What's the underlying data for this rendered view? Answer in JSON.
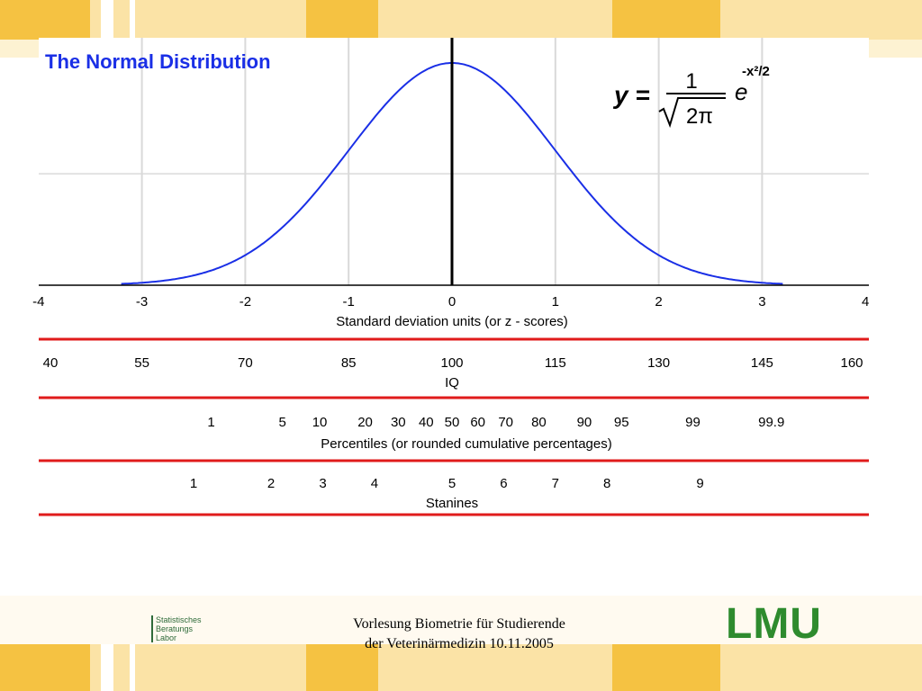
{
  "slide": {
    "footer_line1": "Vorlesung Biometrie für Studierende",
    "footer_line2": "der Veterinärmedizin 10.11.2005",
    "lab_logo": [
      "Statistisches",
      "Beratungs",
      "Labor"
    ],
    "university_logo": "LMU",
    "colors": {
      "stripe_dark": "#f5c242",
      "stripe_light": "#fbe3a6",
      "accent_green": "#2e8b2e"
    }
  },
  "chart_data": {
    "type": "line",
    "title": "The Normal Distribution",
    "formula": {
      "lhs": "y =",
      "numerator": "1",
      "radicand": "2π",
      "base": "e",
      "exponent": "-x²/2"
    },
    "curve": {
      "function": "standard normal density",
      "x_range": [
        -3.2,
        3.2
      ],
      "peak": 0.3989,
      "color": "#1a2fe6"
    },
    "x_axis": {
      "label": "Standard deviation units (or z - scores)",
      "range": [
        -4,
        4
      ],
      "ticks": [
        -4,
        -3,
        -2,
        -1,
        0,
        1,
        2,
        3,
        4
      ],
      "tick_labels": [
        "-4",
        "-3",
        "-2",
        "-1",
        "0",
        "1",
        "2",
        "3",
        "4"
      ]
    },
    "y_range": [
      0,
      0.42
    ],
    "grid": {
      "vertical_lines_at": [
        -3,
        -2,
        -1,
        0,
        1,
        2,
        3
      ],
      "horizontal_lines_at": [
        0.2
      ]
    },
    "scales": [
      {
        "label": "IQ",
        "z": [
          -4,
          -3,
          -2,
          -1,
          0,
          1,
          2,
          3,
          4
        ],
        "labels": [
          "40",
          "55",
          "70",
          "85",
          "100",
          "115",
          "130",
          "145",
          "160"
        ]
      },
      {
        "label": "Percentiles (or rounded cumulative percentages)",
        "z": [
          -2.33,
          -1.64,
          -1.28,
          -0.84,
          -0.52,
          -0.25,
          0,
          0.25,
          0.52,
          0.84,
          1.28,
          1.64,
          2.33,
          3.09
        ],
        "labels": [
          "1",
          "5",
          "10",
          "20",
          "30",
          "40",
          "50",
          "60",
          "70",
          "80",
          "90",
          "95",
          "99",
          "99.9"
        ]
      },
      {
        "label": "Stanines",
        "z": [
          -2.5,
          -1.75,
          -1.25,
          -0.75,
          0,
          0.5,
          1.0,
          1.5,
          2.4
        ],
        "labels": [
          "1",
          "2",
          "3",
          "4",
          "5",
          "6",
          "7",
          "8",
          "9"
        ]
      }
    ]
  }
}
